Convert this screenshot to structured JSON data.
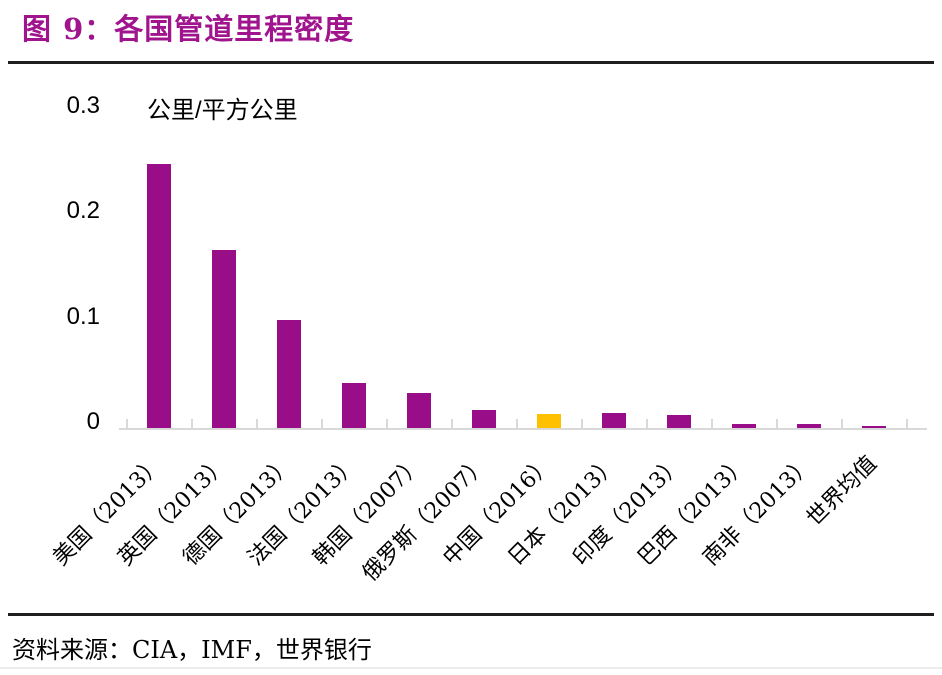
{
  "figure": {
    "title": "图 9：各国管道里程密度",
    "source": "资料来源：CIA，IMF，世界银行"
  },
  "colors": {
    "title": "#a0148e",
    "bar": "#9a0d89",
    "highlight": "#ffc000",
    "axis": "#d9d9d9",
    "divider": "#1f1f1f"
  },
  "chart_data": {
    "type": "bar",
    "title": "各国管道里程密度",
    "unit": "公里/平方公里",
    "categories": [
      "美国（2013）",
      "英国（2013）",
      "德国（2013）",
      "法国（2013）",
      "韩国（2007）",
      "俄罗斯（2007）",
      "中国（2016）",
      "日本（2013）",
      "印度（2013）",
      "巴西（2013）",
      "南非（2013）",
      "世界均值"
    ],
    "values": [
      0.25,
      0.169,
      0.102,
      0.043,
      0.033,
      0.017,
      0.013,
      0.014,
      0.012,
      0.004,
      0.004,
      0.002
    ],
    "highlight_index": 6,
    "ylim": [
      0,
      0.3
    ],
    "yticks": [
      0,
      0.1,
      0.2,
      0.3
    ],
    "ytick_labels": [
      "0",
      "0.1",
      "0.2",
      "0.3"
    ],
    "grid": false,
    "legend": "none",
    "bar_color": "#9a0d89",
    "highlight_color": "#ffc000",
    "axis_color": "#d9d9d9"
  }
}
